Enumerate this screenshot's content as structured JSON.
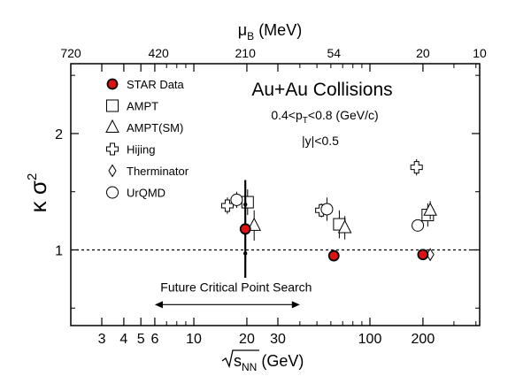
{
  "chart_data": {
    "type": "scatter",
    "title": "Au+Au Collisions",
    "annotations": [
      "0.4<p",
      "T",
      "<0.8 (GeV/c)",
      "|y|<0.5"
    ],
    "xlabel": {
      "main": "s",
      "sub": "NN",
      "unit": " (GeV)"
    },
    "ylabel": {
      "kappa": "κ",
      "sigma": "σ",
      "sup": "2"
    },
    "top_axis_label": {
      "main": "μ",
      "sub": "B",
      "unit": " (MeV)"
    },
    "x_scale": "log",
    "xlim": [
      2.0,
      420
    ],
    "ylim": [
      0.35,
      2.6
    ],
    "x_ticks": [
      {
        "value": 3,
        "label": "3"
      },
      {
        "value": 4,
        "label": "4"
      },
      {
        "value": 5,
        "label": "5"
      },
      {
        "value": 6,
        "label": "6"
      },
      {
        "value": 10,
        "label": "10"
      },
      {
        "value": 20,
        "label": "20"
      },
      {
        "value": 30,
        "label": "30"
      },
      {
        "value": 100,
        "label": "100"
      },
      {
        "value": 200,
        "label": "200"
      }
    ],
    "x_minor_ticks": [
      7,
      8,
      9,
      40,
      50,
      60,
      70,
      80,
      90,
      300,
      400
    ],
    "top_ticks": [
      {
        "x": 2.0,
        "label": "720"
      },
      {
        "x": 6.3,
        "label": "420"
      },
      {
        "x": 19.6,
        "label": "210"
      },
      {
        "x": 62.4,
        "label": "54"
      },
      {
        "x": 200,
        "label": "20"
      },
      {
        "x": 420,
        "label": "10"
      }
    ],
    "y_ticks": [
      {
        "value": 1,
        "label": "1"
      },
      {
        "value": 2,
        "label": "2"
      }
    ],
    "y_minor_ticks": [
      0.5,
      1.5,
      2.5
    ],
    "reference_line": 1,
    "critical_point_search": {
      "label": "Future Critical Point Search",
      "x_range": [
        6,
        40
      ],
      "y": 0.53
    },
    "legend": [
      {
        "name": "STAR Data",
        "marker": "filled-circle"
      },
      {
        "name": "AMPT",
        "marker": "square"
      },
      {
        "name": "AMPT(SM)",
        "marker": "triangle"
      },
      {
        "name": "Hijing",
        "marker": "cross"
      },
      {
        "name": "Therminator",
        "marker": "diamond"
      },
      {
        "name": "UrQMD",
        "marker": "circle"
      }
    ],
    "series": [
      {
        "name": "STAR Data",
        "marker": "filled-circle",
        "color": "#dd1111",
        "points": [
          {
            "x": 19.6,
            "y": 1.18,
            "err": 0.42
          },
          {
            "x": 62.4,
            "y": 0.95,
            "err": 0.03
          },
          {
            "x": 200,
            "y": 0.96,
            "err": 0.03
          }
        ]
      },
      {
        "name": "AMPT",
        "marker": "square",
        "points": [
          {
            "x": 20.2,
            "y": 1.41,
            "err": 0.11
          },
          {
            "x": 67,
            "y": 1.22,
            "err": 0.12
          },
          {
            "x": 213,
            "y": 1.3,
            "err": 0.1
          }
        ]
      },
      {
        "name": "AMPT(SM)",
        "marker": "triangle",
        "points": [
          {
            "x": 22.0,
            "y": 1.21,
            "err": 0.13
          },
          {
            "x": 72,
            "y": 1.19,
            "err": 0.1
          },
          {
            "x": 220,
            "y": 1.34,
            "err": 0.08
          }
        ]
      },
      {
        "name": "Hijing",
        "marker": "cross",
        "points": [
          {
            "x": 15.5,
            "y": 1.38,
            "err": 0.07
          },
          {
            "x": 53,
            "y": 1.34,
            "err": 0.06
          },
          {
            "x": 184,
            "y": 1.71,
            "err": 0.07
          }
        ]
      },
      {
        "name": "Therminator",
        "marker": "diamond",
        "points": [
          {
            "x": 220,
            "y": 0.96,
            "err": 0
          }
        ]
      },
      {
        "name": "UrQMD",
        "marker": "circle",
        "points": [
          {
            "x": 17.5,
            "y": 1.43,
            "err": 0.07
          },
          {
            "x": 57,
            "y": 1.35,
            "err": 0.1
          },
          {
            "x": 187,
            "y": 1.21,
            "err": 0.04
          }
        ]
      }
    ],
    "grid": false
  }
}
